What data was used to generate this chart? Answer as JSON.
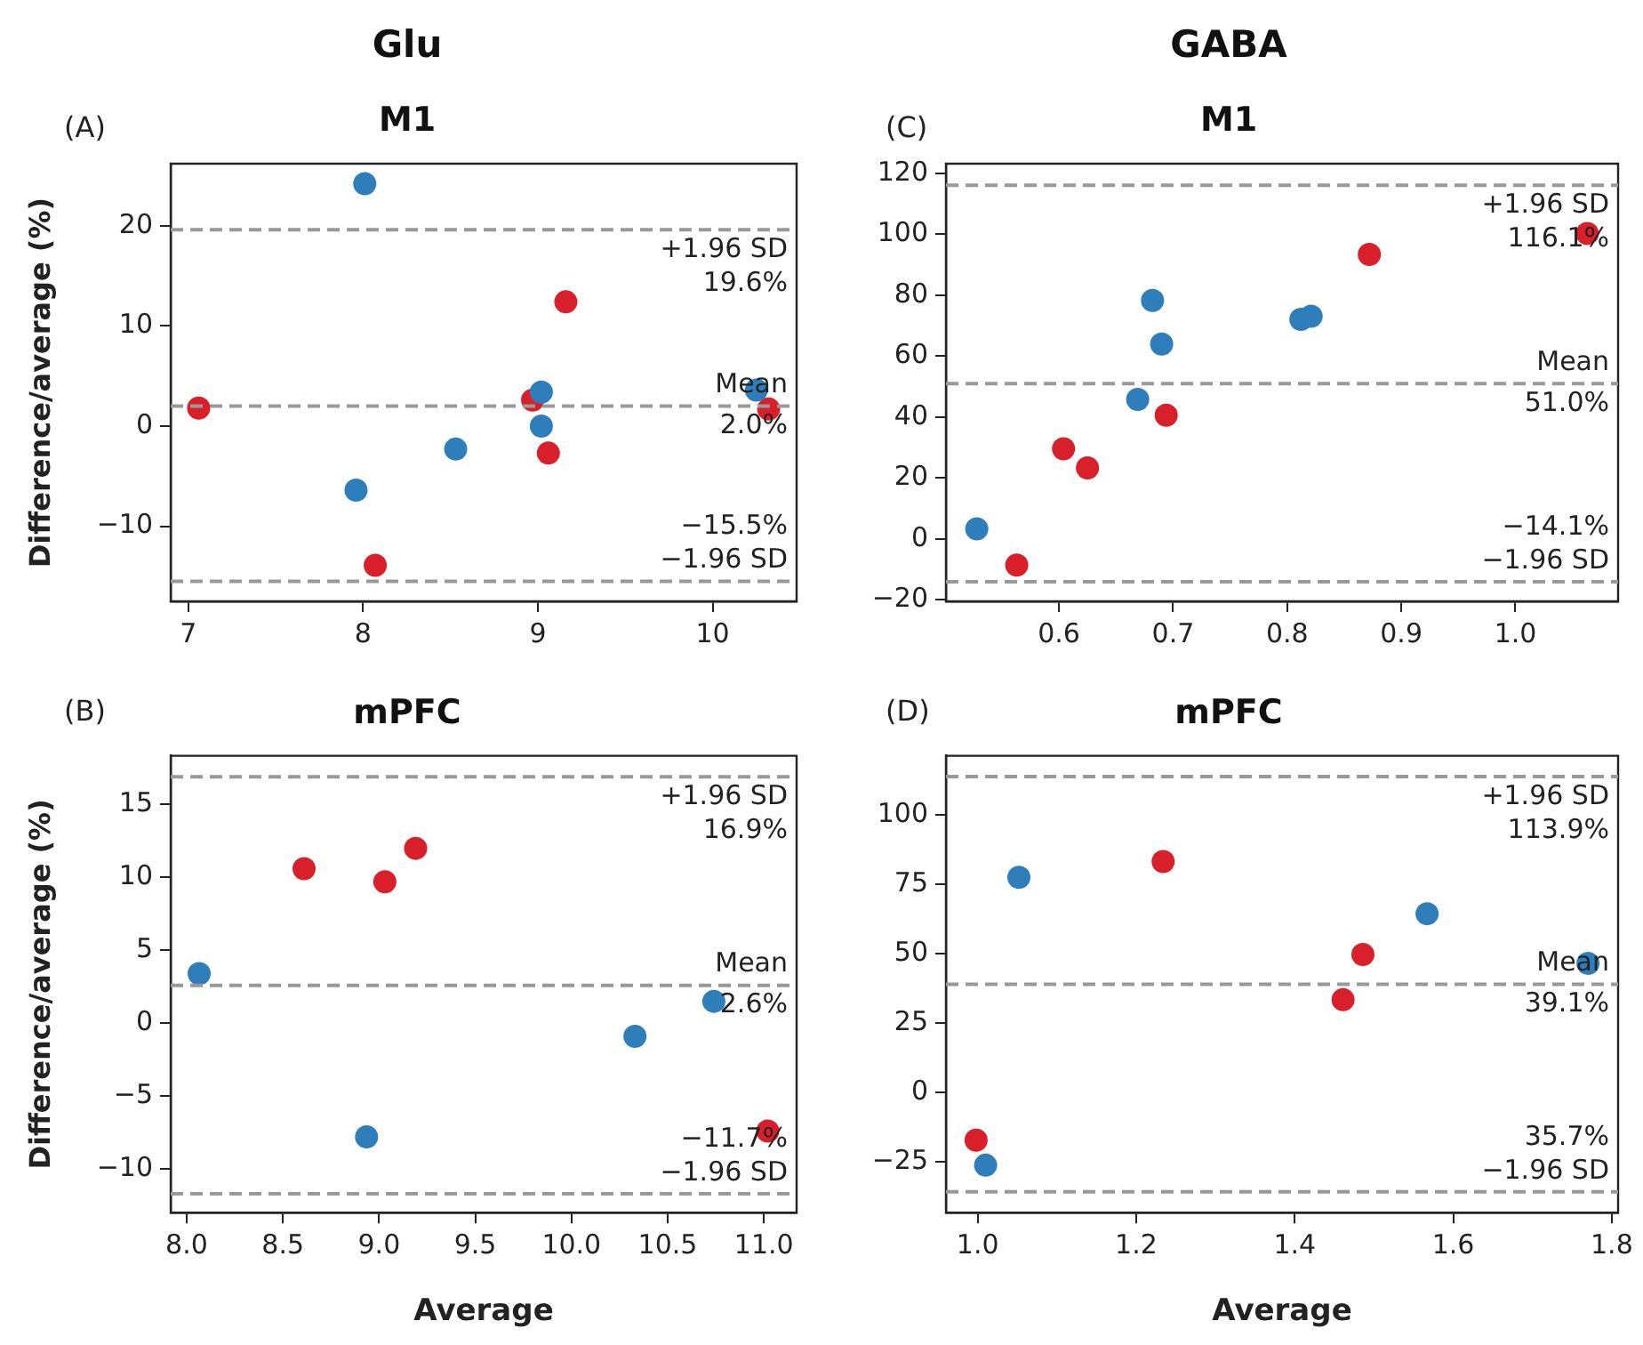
{
  "chart_data": [
    {
      "type": "scatter",
      "title": "Glu",
      "subtitle": "M1",
      "ylabel": "Difference/average (%)",
      "marker": "circle",
      "xlim": [
        6.9,
        10.48
      ],
      "xticks": [
        7,
        8,
        9,
        10
      ],
      "ylim": [
        -17.5,
        26.2
      ],
      "yticks": [
        {
          "value": -10,
          "label": "−10"
        },
        0,
        10,
        20
      ],
      "series": [
        {
          "color": "#2f7ebc",
          "x": [
            8.01,
            7.96,
            8.53,
            9.02,
            9.02,
            10.25
          ],
          "values": [
            24.2,
            -6.4,
            -2.3,
            3.4,
            0,
            3.6
          ]
        },
        {
          "color": "#d9202a",
          "x": [
            7.06,
            8.07,
            8.97,
            9.16,
            9.06,
            10.32
          ],
          "values": [
            1.8,
            -13.9,
            2.6,
            12.4,
            -2.7,
            1.7
          ]
        }
      ],
      "ref_lines": [
        {
          "axis": "y",
          "value": 19.6,
          "label": "+1.96 SD",
          "color": "#999999",
          "line_style": "dashed"
        },
        {
          "axis": "y",
          "value": 2.0,
          "label": "Mean",
          "color": "#999999",
          "line_style": "dashed"
        },
        {
          "axis": "y",
          "value": -15.5,
          "label": "−1.96 SD",
          "color": "#999999",
          "line_style": "dashed"
        }
      ],
      "annotations": [
        "(A)",
        {
          "text": "19.6%",
          "y": 19.6
        },
        {
          "text": "2.0%",
          "y": 2.0
        },
        {
          "text": "−15.5%",
          "y": -15.5
        }
      ]
    },
    {
      "type": "scatter",
      "title": "GABA",
      "subtitle": "M1",
      "marker": "circle",
      "xlim": [
        0.501,
        1.09
      ],
      "xticks": [
        0.6,
        0.7,
        0.8,
        0.9,
        {
          "value": 1,
          "label": "1.0"
        }
      ],
      "ylim": [
        -20.5,
        123.2
      ],
      "yticks": [
        {
          "value": -20,
          "label": "−20"
        },
        0,
        20,
        40,
        60,
        80,
        100,
        120
      ],
      "series": [
        {
          "color": "#2f7ebc",
          "x": [
            0.528,
            0.682,
            0.69,
            0.669,
            0.812,
            0.821
          ],
          "values": [
            3.3,
            78.3,
            64.0,
            45.8,
            72.1,
            73.1
          ]
        },
        {
          "color": "#d9202a",
          "x": [
            0.563,
            0.604,
            0.625,
            0.694,
            0.872,
            1.063
          ],
          "values": [
            -8.6,
            29.6,
            23.3,
            40.6,
            93.4,
            100.3
          ]
        }
      ],
      "ref_lines": [
        {
          "axis": "y",
          "value": 116.1,
          "label": "+1.96 SD",
          "color": "#999999",
          "line_style": "dashed"
        },
        {
          "axis": "y",
          "value": 51.0,
          "label": "Mean",
          "color": "#999999",
          "line_style": "dashed"
        },
        {
          "axis": "y",
          "value": -14.1,
          "label": "−1.96 SD",
          "color": "#999999",
          "line_style": "dashed"
        }
      ],
      "annotations": [
        "(C)",
        {
          "text": "116.1%",
          "y": 116.1
        },
        {
          "text": "51.0%",
          "y": 51.0
        },
        {
          "text": "−14.1%",
          "y": -14.1
        }
      ]
    },
    {
      "type": "scatter",
      "title": "mPFC",
      "xlabel": "Average",
      "ylabel": "Difference/average (%)",
      "marker": "circle",
      "xlim": [
        7.917,
        11.17
      ],
      "xticks": [
        {
          "value": 8,
          "label": "8.0"
        },
        8.5,
        {
          "value": 9,
          "label": "9.0"
        },
        9.5,
        {
          "value": 10,
          "label": "10.0"
        },
        10.5,
        {
          "value": 11,
          "label": "11.0"
        }
      ],
      "ylim": [
        -13.0,
        18.35
      ],
      "yticks": [
        {
          "value": -10,
          "label": "−10"
        },
        {
          "value": -5,
          "label": "−5"
        },
        0,
        5,
        10,
        15
      ],
      "series": [
        {
          "color": "#2f7ebc",
          "x": [
            8.065,
            8.935,
            10.33,
            10.74
          ],
          "values": [
            3.4,
            -7.8,
            -0.9,
            1.5
          ]
        },
        {
          "color": "#d9202a",
          "x": [
            8.61,
            9.03,
            9.19,
            11.02
          ],
          "values": [
            10.6,
            9.7,
            12.0,
            -7.4
          ]
        }
      ],
      "ref_lines": [
        {
          "axis": "y",
          "value": 16.9,
          "label": "+1.96 SD",
          "color": "#999999",
          "line_style": "dashed"
        },
        {
          "axis": "y",
          "value": 2.6,
          "label": "Mean",
          "color": "#999999",
          "line_style": "dashed"
        },
        {
          "axis": "y",
          "value": -11.7,
          "label": "−1.96 SD",
          "color": "#999999",
          "line_style": "dashed"
        }
      ],
      "annotations": [
        "(B)",
        {
          "text": "16.9%",
          "y": 16.9
        },
        {
          "text": "2.6%",
          "y": 2.6
        },
        {
          "text": "−11.7%",
          "y": -11.7
        }
      ]
    },
    {
      "type": "scatter",
      "title": "mPFC",
      "xlabel": "Average",
      "marker": "circle",
      "xlim": [
        0.96,
        1.808
      ],
      "xticks": [
        {
          "value": 1,
          "label": "1.0"
        },
        1.2,
        1.4,
        1.6,
        1.8
      ],
      "ylim": [
        -43.2,
        121.4
      ],
      "yticks": [
        {
          "value": -25,
          "label": "−25"
        },
        0,
        25,
        50,
        75,
        100
      ],
      "series": [
        {
          "color": "#2f7ebc",
          "x": [
            1.052,
            1.01,
            1.567,
            1.77
          ],
          "values": [
            77.6,
            -26.1,
            64.5,
            46.6
          ]
        },
        {
          "color": "#d9202a",
          "x": [
            0.998,
            1.234,
            1.461,
            1.486
          ],
          "values": [
            -17.1,
            83.3,
            33.5,
            49.8
          ]
        }
      ],
      "ref_lines": [
        {
          "axis": "y",
          "value": 113.9,
          "label": "+1.96 SD",
          "color": "#999999",
          "line_style": "dashed"
        },
        {
          "axis": "y",
          "value": 39.1,
          "label": "Mean",
          "color": "#999999",
          "line_style": "dashed"
        },
        {
          "axis": "y",
          "value": -35.7,
          "label": "−1.96 SD",
          "color": "#999999",
          "line_style": "dashed"
        }
      ],
      "annotations": [
        "(D)",
        {
          "text": "113.9%",
          "y": 113.9
        },
        {
          "text": "39.1%",
          "y": 39.1
        },
        {
          "text": "35.7%",
          "y": -35.7
        }
      ]
    }
  ]
}
